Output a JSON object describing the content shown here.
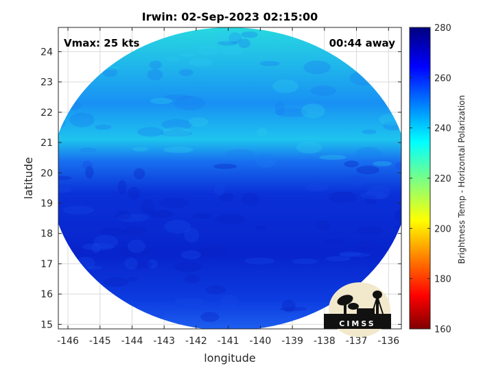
{
  "chart_data": {
    "type": "heatmap",
    "title": "Irwin: 02-Sep-2023 02:15:00",
    "xlabel": "longitude",
    "ylabel": "latitude",
    "xlim": [
      -146.3,
      -135.6
    ],
    "ylim": [
      14.85,
      24.8
    ],
    "x_ticks": [
      -146,
      -145,
      -144,
      -143,
      -142,
      -141,
      -140,
      -139,
      -138,
      -137,
      -136
    ],
    "y_ticks": [
      15,
      16,
      17,
      18,
      19,
      20,
      21,
      22,
      23,
      24
    ],
    "grid": true,
    "footprint": {
      "center_lon": -140.95,
      "center_lat": 19.8,
      "radius_lon": 5.6,
      "radius_lat": 5.0
    },
    "regions": [
      {
        "lat_min": 22.8,
        "lat_max": 24.8,
        "brightness_temp": 236
      },
      {
        "lat_min": 21.0,
        "lat_max": 22.8,
        "brightness_temp": 245
      },
      {
        "lat_min": 20.0,
        "lat_max": 21.0,
        "brightness_temp": 254
      },
      {
        "lat_min": 14.85,
        "lat_max": 20.0,
        "brightness_temp": 264
      }
    ],
    "annotations": {
      "left": "Vmax: 25 kts",
      "right": "00:44 away"
    },
    "colorbar": {
      "label": "Brightness Temp - Horizontal Polarization",
      "min": 160,
      "max": 280,
      "ticks": [
        160,
        180,
        200,
        220,
        240,
        260,
        280
      ],
      "colormap": "jet"
    }
  },
  "logo": {
    "text": "CIMSS"
  },
  "colors": {
    "background": "#ffffff",
    "axis": "#262626",
    "grid": "#d9d9d9"
  }
}
